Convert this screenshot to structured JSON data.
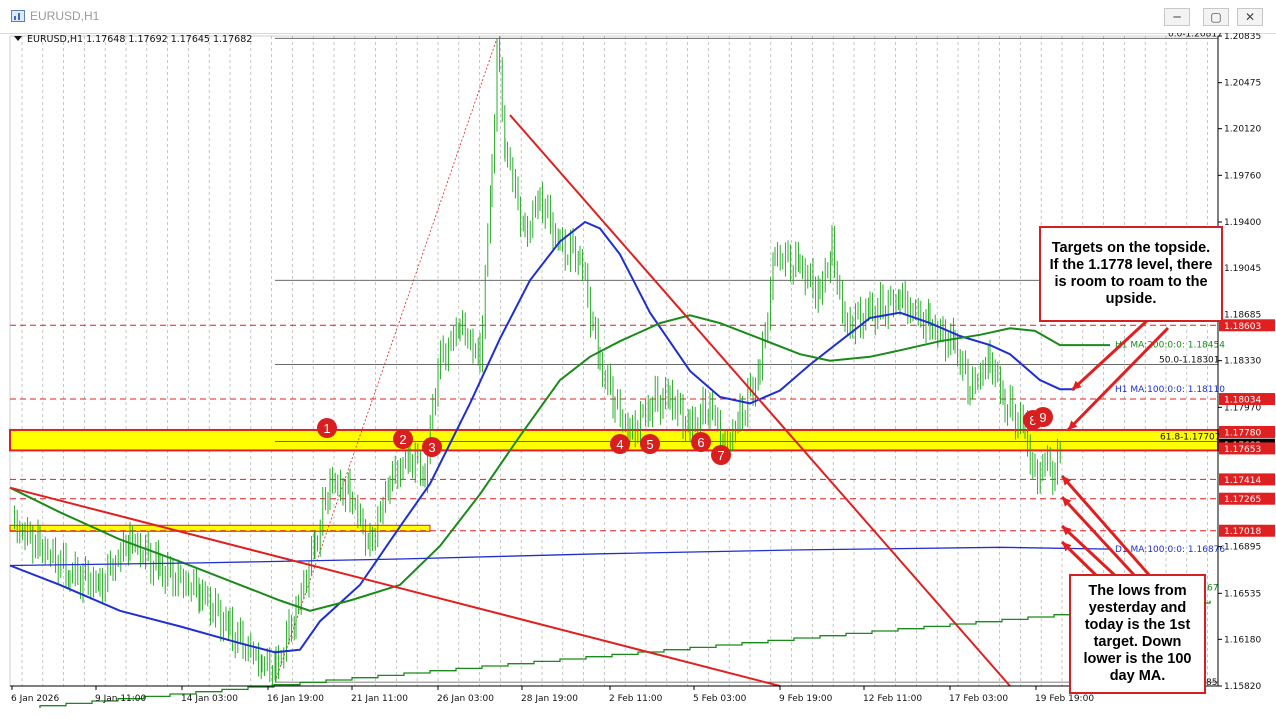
{
  "window": {
    "title": "EURUSD,H1",
    "buttons": {
      "minimize": "─",
      "maximize": "▢",
      "close": "✕"
    }
  },
  "chart": {
    "symbol_line": "EURUSD,H1  1.17648 1.17692 1.17645 1.17682",
    "price_axis": [
      "1.20835",
      "1.20475",
      "1.20120",
      "1.19760",
      "1.19400",
      "1.19045",
      "1.18685",
      "1.18330",
      "1.17970",
      "1.16895",
      "1.16535",
      "1.16180",
      "1.15820"
    ],
    "time_axis": [
      "6 Jan 2026",
      "9 Jan 11:00",
      "14 Jan 03:00",
      "16 Jan 19:00",
      "21 Jan 11:00",
      "26 Jan 03:00",
      "28 Jan 19:00",
      "2 Feb 11:00",
      "5 Feb 03:00",
      "9 Feb 19:00",
      "12 Feb 11:00",
      "17 Feb 03:00",
      "19 Feb 19:00"
    ],
    "level_tags": [
      {
        "price": 1.18603,
        "label": "1.18603",
        "bg": "#e02020",
        "fg": "#ffffff"
      },
      {
        "price": 1.18034,
        "label": "1.18034",
        "bg": "#e02020",
        "fg": "#ffffff"
      },
      {
        "price": 1.1778,
        "label": "1.17780",
        "bg": "#e02020",
        "fg": "#ffffff"
      },
      {
        "price": 1.17682,
        "label": "1.17682",
        "bg": "#000000",
        "fg": "#ffffff"
      },
      {
        "price": 1.17653,
        "label": "1.17653",
        "bg": "#e02020",
        "fg": "#ffffff"
      },
      {
        "price": 1.17414,
        "label": "1.17414",
        "bg": "#e02020",
        "fg": "#ffffff"
      },
      {
        "price": 1.17265,
        "label": "1.17265",
        "bg": "#e02020",
        "fg": "#ffffff"
      },
      {
        "price": 1.17018,
        "label": "1.17018",
        "bg": "#e02020",
        "fg": "#ffffff"
      }
    ],
    "fib_labels": {
      "top": "0.0-1.20817",
      "mid": "50.0-1.18301",
      "low": "61.8-1.17707",
      "bottom_partial": "85"
    },
    "ma_labels": {
      "h1_ma200": "H1 MA:200:0:0: 1.18454",
      "h1_ma100": "H1 MA:100:0:0: 1.18110",
      "d1_ma100": "D1 MA:100:0:0: 1.16876",
      "d1_partial": "67"
    },
    "swing_markers": [
      "1",
      "2",
      "3",
      "4",
      "5",
      "6",
      "7",
      "8",
      "9"
    ],
    "colors": {
      "red": "#e02020",
      "blue_ma": "#1f2fd0",
      "green_ma": "#1a8a1a",
      "zone_yellow": "#ffff00",
      "price": "#17a317"
    },
    "callouts": {
      "top": "Targets on the topside. If the 1.1778 level, there is room to roam to the upside.",
      "bottom": "The lows from yesterday and today is the 1st target. Down lower is the 100 day MA."
    }
  }
}
